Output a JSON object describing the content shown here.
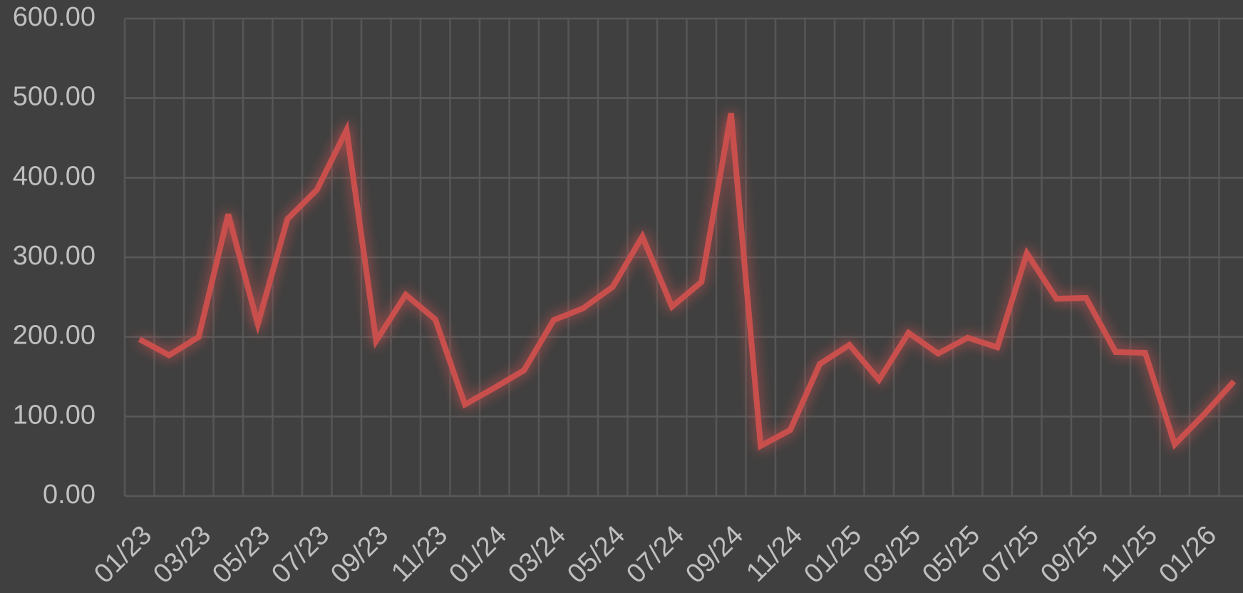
{
  "chart_data": {
    "type": "line",
    "categories": [
      "01/23",
      null,
      "03/23",
      null,
      "05/23",
      null,
      "07/23",
      null,
      "09/23",
      null,
      "11/23",
      null,
      "01/24",
      null,
      "03/24",
      null,
      "05/24",
      null,
      "07/24",
      null,
      "09/24",
      null,
      "11/24",
      null,
      "01/25",
      null,
      "03/25",
      null,
      "05/25",
      null,
      "07/25",
      null,
      "09/25",
      null,
      "11/25",
      null,
      "01/26",
      null
    ],
    "series": [
      {
        "color": "#c9504d",
        "values": [
          197,
          177,
          200,
          354,
          216,
          348,
          385,
          460,
          195,
          253,
          222,
          115,
          136,
          158,
          221,
          236,
          263,
          326,
          238,
          269,
          481,
          63,
          83,
          166,
          190,
          146,
          205,
          179,
          199,
          187,
          305,
          248,
          249,
          181,
          180,
          65,
          103,
          144
        ]
      }
    ],
    "ylim": [
      0,
      600
    ],
    "yticks": [
      {
        "value": 0,
        "label": "0.00"
      },
      {
        "value": 100,
        "label": "100.00"
      },
      {
        "value": 200,
        "label": "200.00"
      },
      {
        "value": 300,
        "label": "300.00"
      },
      {
        "value": 400,
        "label": "400.00"
      },
      {
        "value": 500,
        "label": "500.00"
      },
      {
        "value": 600,
        "label": "600.00"
      }
    ],
    "grid": true
  }
}
